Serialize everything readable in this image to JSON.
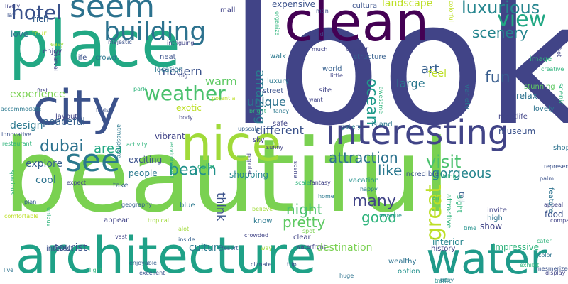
{
  "title": "word cloud",
  "palette": {
    "yellow_green": "#a0da39",
    "green": "#4ac16d",
    "light_green": "#7ad151",
    "teal": "#1fa187",
    "dark_teal": "#277f8e",
    "blue": "#365c8d",
    "indigo": "#46327e",
    "purple": "#440154",
    "yellow": "#bddf26"
  },
  "words": [
    {
      "text": "look",
      "color": "#414487"
    },
    {
      "text": "beautiful",
      "color": "#7ad151"
    },
    {
      "text": "clean",
      "color": "#440154"
    },
    {
      "text": "place",
      "color": "#22a884"
    },
    {
      "text": "architecture",
      "color": "#1fa187"
    },
    {
      "text": "city",
      "color": "#3b528b"
    },
    {
      "text": "nice",
      "color": "#a0da39"
    },
    {
      "text": "water",
      "color": "#1f9a8a"
    },
    {
      "text": "interesting",
      "color": "#414487"
    },
    {
      "text": "seem",
      "color": "#2c728e"
    },
    {
      "text": "see",
      "color": "#2a788e"
    },
    {
      "text": "building",
      "color": "#2c728e"
    },
    {
      "text": "hotel",
      "color": "#3b528b"
    },
    {
      "text": "weather",
      "color": "#4ac16d"
    },
    {
      "text": "view",
      "color": "#22a884"
    },
    {
      "text": "luxurious",
      "color": "#25858e"
    },
    {
      "text": "scenery",
      "color": "#25858e"
    },
    {
      "text": "beach",
      "color": "#21918c"
    },
    {
      "text": "dubai",
      "color": "#2c728e"
    },
    {
      "text": "visit",
      "color": "#4ac16d"
    },
    {
      "text": "fun",
      "color": "#365c8d"
    },
    {
      "text": "ocean",
      "color": "#1f9a8a"
    },
    {
      "text": "amazing",
      "color": "#2a788e"
    },
    {
      "text": "night",
      "color": "#4ac16d"
    },
    {
      "text": "pretty",
      "color": "#5ec962"
    },
    {
      "text": "like",
      "color": "#2a788e"
    },
    {
      "text": "many",
      "color": "#414487"
    },
    {
      "text": "good",
      "color": "#2fb47c"
    },
    {
      "text": "great",
      "color": "#bddf26"
    },
    {
      "text": "attraction",
      "color": "#2c728e"
    },
    {
      "text": "gorgeous",
      "color": "#25858e"
    },
    {
      "text": "art",
      "color": "#355f8d"
    },
    {
      "text": "large",
      "color": "#2a788e"
    },
    {
      "text": "feel",
      "color": "#bddf26"
    },
    {
      "text": "unique",
      "color": "#2c728e"
    },
    {
      "text": "different",
      "color": "#3b528b"
    },
    {
      "text": "area",
      "color": "#22a884"
    },
    {
      "text": "modern",
      "color": "#3b528b"
    },
    {
      "text": "warm",
      "color": "#5ec962"
    },
    {
      "text": "landscape",
      "color": "#bddf26"
    },
    {
      "text": "expensive",
      "color": "#3b528b"
    },
    {
      "text": "experience",
      "color": "#7ad151"
    },
    {
      "text": "love",
      "color": "#2c728e"
    },
    {
      "text": "rich",
      "color": "#355f8d"
    },
    {
      "text": "design",
      "color": "#2a788e"
    },
    {
      "text": "peaceful",
      "color": "#355f8d"
    },
    {
      "text": "explore",
      "color": "#355f8d"
    },
    {
      "text": "cool",
      "color": "#2c728e"
    },
    {
      "text": "exotic",
      "color": "#bddf26"
    },
    {
      "text": "exciting",
      "color": "#3b528b"
    },
    {
      "text": "people",
      "color": "#2a788e"
    },
    {
      "text": "shopping",
      "color": "#25858e"
    },
    {
      "text": "think",
      "color": "#3b528b"
    },
    {
      "text": "tourist",
      "color": "#3b528b"
    },
    {
      "text": "culture",
      "color": "#2a788e"
    },
    {
      "text": "destination",
      "color": "#7ad151"
    },
    {
      "text": "interior",
      "color": "#25858e"
    },
    {
      "text": "museum",
      "color": "#3b528b"
    },
    {
      "text": "shop",
      "color": "#2c728e"
    },
    {
      "text": "relax",
      "color": "#2c728e"
    },
    {
      "text": "stunning",
      "color": "#5ec962"
    },
    {
      "text": "lovely",
      "color": "#2c728e"
    },
    {
      "text": "scenic",
      "color": "#2fb47c"
    },
    {
      "text": "food",
      "color": "#3b528b"
    },
    {
      "text": "show",
      "color": "#414487"
    },
    {
      "text": "invite",
      "color": "#414487"
    },
    {
      "text": "high",
      "color": "#2c728e"
    },
    {
      "text": "impressive",
      "color": "#2fb47c"
    },
    {
      "text": "vacation",
      "color": "#21918c"
    },
    {
      "text": "street",
      "color": "#3b528b"
    },
    {
      "text": "luxury",
      "color": "#2a788e"
    },
    {
      "text": "site",
      "color": "#414487"
    },
    {
      "text": "world",
      "color": "#355f8d"
    },
    {
      "text": "image",
      "color": "#2fb47c"
    },
    {
      "text": "vibrant",
      "color": "#414487"
    },
    {
      "text": "take",
      "color": "#355f8d"
    },
    {
      "text": "blue",
      "color": "#2a788e"
    },
    {
      "text": "appear",
      "color": "#414487"
    },
    {
      "text": "wealthy",
      "color": "#2c728e"
    },
    {
      "text": "option",
      "color": "#21918c"
    },
    {
      "text": "history",
      "color": "#414487"
    },
    {
      "text": "interest",
      "color": "#3b528b"
    },
    {
      "text": "clear",
      "color": "#414487"
    },
    {
      "text": "know",
      "color": "#2a788e"
    },
    {
      "text": "tall",
      "color": "#365c8d"
    },
    {
      "text": "cultural",
      "color": "#3b528b"
    },
    {
      "text": "mall",
      "color": "#414487"
    },
    {
      "text": "nightlife",
      "color": "#414487"
    },
    {
      "text": "incredible",
      "color": "#3b528b"
    },
    {
      "text": "variety",
      "color": "#2c728e"
    },
    {
      "text": "island",
      "color": "#2a788e"
    },
    {
      "text": "calm",
      "color": "#2fb47c"
    },
    {
      "text": "sky",
      "color": "#414487"
    },
    {
      "text": "safe",
      "color": "#414487"
    },
    {
      "text": "walk",
      "color": "#2a788e"
    },
    {
      "text": "center",
      "color": "#414487"
    },
    {
      "text": "structure",
      "color": "#355f8d"
    },
    {
      "text": "location",
      "color": "#2a788e"
    },
    {
      "text": "neat",
      "color": "#3b528b"
    },
    {
      "text": "enjoy",
      "color": "#414487"
    },
    {
      "text": "life",
      "color": "#3b528b"
    },
    {
      "text": "crowd",
      "color": "#2a788e"
    },
    {
      "text": "tour",
      "color": "#bddf26"
    },
    {
      "text": "lay",
      "color": "#3b528b"
    },
    {
      "text": "lively",
      "color": "#414487"
    },
    {
      "text": "first",
      "color": "#414487"
    },
    {
      "text": "layout",
      "color": "#414487"
    },
    {
      "text": "lavish",
      "color": "#3b528b"
    },
    {
      "text": "activity",
      "color": "#2fb47c"
    },
    {
      "text": "palm",
      "color": "#3b528b"
    },
    {
      "text": "appeal",
      "color": "#414487"
    },
    {
      "text": "feature",
      "color": "#2c728e"
    },
    {
      "text": "sight",
      "color": "#2fb47c"
    },
    {
      "text": "attractive",
      "color": "#2fb47c"
    },
    {
      "text": "living",
      "color": "#2fb47c"
    },
    {
      "text": "time",
      "color": "#21918c"
    },
    {
      "text": "happy",
      "color": "#2a788e"
    },
    {
      "text": "vast",
      "color": "#414487"
    },
    {
      "text": "inside",
      "color": "#355f8d"
    },
    {
      "text": "crowded",
      "color": "#414487"
    },
    {
      "text": "spot",
      "color": "#7ad151"
    },
    {
      "text": "alot",
      "color": "#a0da39"
    },
    {
      "text": "resort",
      "color": "#355f8d"
    },
    {
      "text": "way",
      "color": "#a0da39"
    },
    {
      "text": "climate",
      "color": "#3b528b"
    },
    {
      "text": "trip",
      "color": "#3b528b"
    },
    {
      "text": "huge",
      "color": "#2c728e"
    },
    {
      "text": "color",
      "color": "#2c728e"
    },
    {
      "text": "display",
      "color": "#414487"
    },
    {
      "text": "exhibit",
      "color": "#2fb47c"
    },
    {
      "text": "mosque",
      "color": "#21918c"
    },
    {
      "text": "live",
      "color": "#2c728e"
    },
    {
      "text": "light",
      "color": "#2fb47c"
    },
    {
      "text": "excellent",
      "color": "#3b528b"
    },
    {
      "text": "enjoyable",
      "color": "#355f8d"
    },
    {
      "text": "fancy",
      "color": "#2a788e"
    },
    {
      "text": "bright",
      "color": "#2fb47c"
    },
    {
      "text": "body",
      "color": "#414487"
    },
    {
      "text": "upscale",
      "color": "#355f8d"
    },
    {
      "text": "sunny",
      "color": "#414487"
    },
    {
      "text": "atmosphere",
      "color": "#2a788e"
    },
    {
      "text": "environment",
      "color": "#2fb47c"
    },
    {
      "text": "scene",
      "color": "#414487"
    },
    {
      "text": "popular",
      "color": "#414487"
    },
    {
      "text": "scale",
      "color": "#2fb47c"
    },
    {
      "text": "fantasy",
      "color": "#414487"
    },
    {
      "text": "gallery",
      "color": "#2a788e"
    },
    {
      "text": "awesome",
      "color": "#2fb47c"
    },
    {
      "text": "little",
      "color": "#414487"
    },
    {
      "text": "want",
      "color": "#414487"
    },
    {
      "text": "wonder",
      "color": "#414487"
    },
    {
      "text": "organize",
      "color": "#2fb47c"
    },
    {
      "text": "much",
      "color": "#414487"
    },
    {
      "text": "man",
      "color": "#3b528b"
    },
    {
      "text": "colorful",
      "color": "#bddf26"
    },
    {
      "text": "creative",
      "color": "#2fb47c"
    },
    {
      "text": "hot",
      "color": "#414487"
    },
    {
      "text": "represent",
      "color": "#3b528b"
    },
    {
      "text": "compare",
      "color": "#414487"
    },
    {
      "text": "mesmerized",
      "color": "#3b528b"
    },
    {
      "text": "traffic",
      "color": "#21918c"
    },
    {
      "text": "waterfront",
      "color": "#414487"
    },
    {
      "text": "tropical",
      "color": "#a0da39"
    },
    {
      "text": "expect",
      "color": "#414487"
    },
    {
      "text": "geography",
      "color": "#355f8d"
    },
    {
      "text": "plan",
      "color": "#355f8d"
    },
    {
      "text": "spacious",
      "color": "#2fb47c"
    },
    {
      "text": "comfortable",
      "color": "#bddf26"
    },
    {
      "text": "restaurant",
      "color": "#2fb47c"
    },
    {
      "text": "innovative",
      "color": "#3b528b"
    },
    {
      "text": "accommodate",
      "color": "#2a788e"
    },
    {
      "text": "marvel",
      "color": "#414487"
    },
    {
      "text": "majestic",
      "color": "#3b528b"
    },
    {
      "text": "intriguing",
      "color": "#414487"
    },
    {
      "text": "easy",
      "color": "#a0da39"
    },
    {
      "text": "park",
      "color": "#2fb47c"
    },
    {
      "text": "potential",
      "color": "#bddf26"
    },
    {
      "text": "believe",
      "color": "#a0da39"
    },
    {
      "text": "home",
      "color": "#2a788e"
    },
    {
      "text": "air",
      "color": "#2fb47c"
    },
    {
      "text": "big",
      "color": "#414487"
    },
    {
      "text": "unique",
      "color": "#2fb47c"
    },
    {
      "text": "cater",
      "color": "#2fb47c"
    },
    {
      "text": "busy",
      "color": "#2a788e"
    }
  ]
}
